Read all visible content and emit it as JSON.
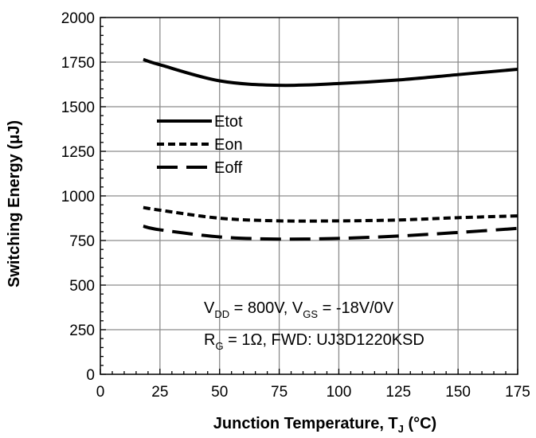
{
  "chart_data": {
    "type": "line",
    "title": "",
    "xlabel": "Junction Temperature, T",
    "xlabel_sub": "J",
    "xlabel_unit": " (°C)",
    "ylabel": "Switching Energy (μJ)",
    "xlim": [
      0,
      175
    ],
    "ylim": [
      0,
      2000
    ],
    "xticks": [
      0,
      25,
      50,
      75,
      100,
      125,
      150,
      175
    ],
    "yticks": [
      0,
      250,
      500,
      750,
      1000,
      1250,
      1500,
      1750,
      2000
    ],
    "grid": true,
    "legend_position": "upper-left",
    "series": [
      {
        "name": "Etot",
        "style": "solid",
        "x": [
          18,
          25,
          50,
          75,
          100,
          125,
          150,
          175
        ],
        "y": [
          1765,
          1735,
          1645,
          1620,
          1630,
          1650,
          1680,
          1710
        ]
      },
      {
        "name": "Eon",
        "style": "dotted",
        "x": [
          18,
          25,
          50,
          75,
          100,
          125,
          150,
          175
        ],
        "y": [
          935,
          920,
          875,
          860,
          860,
          865,
          878,
          888
        ]
      },
      {
        "name": "Eoff",
        "style": "dashed",
        "x": [
          18,
          25,
          50,
          75,
          100,
          125,
          150,
          175
        ],
        "y": [
          830,
          810,
          770,
          758,
          762,
          775,
          795,
          818
        ]
      }
    ],
    "annotations": [
      {
        "parts": [
          {
            "t": "V",
            "sub": false
          },
          {
            "t": "DD",
            "sub": true
          },
          {
            "t": " = 800V, V",
            "sub": false
          },
          {
            "t": "GS",
            "sub": true
          },
          {
            "t": " = -18V/0V",
            "sub": false
          }
        ]
      },
      {
        "parts": [
          {
            "t": "R",
            "sub": false
          },
          {
            "t": "G",
            "sub": true
          },
          {
            "t": " = 1Ω, FWD: UJ3D1220KSD",
            "sub": false
          }
        ]
      }
    ]
  }
}
